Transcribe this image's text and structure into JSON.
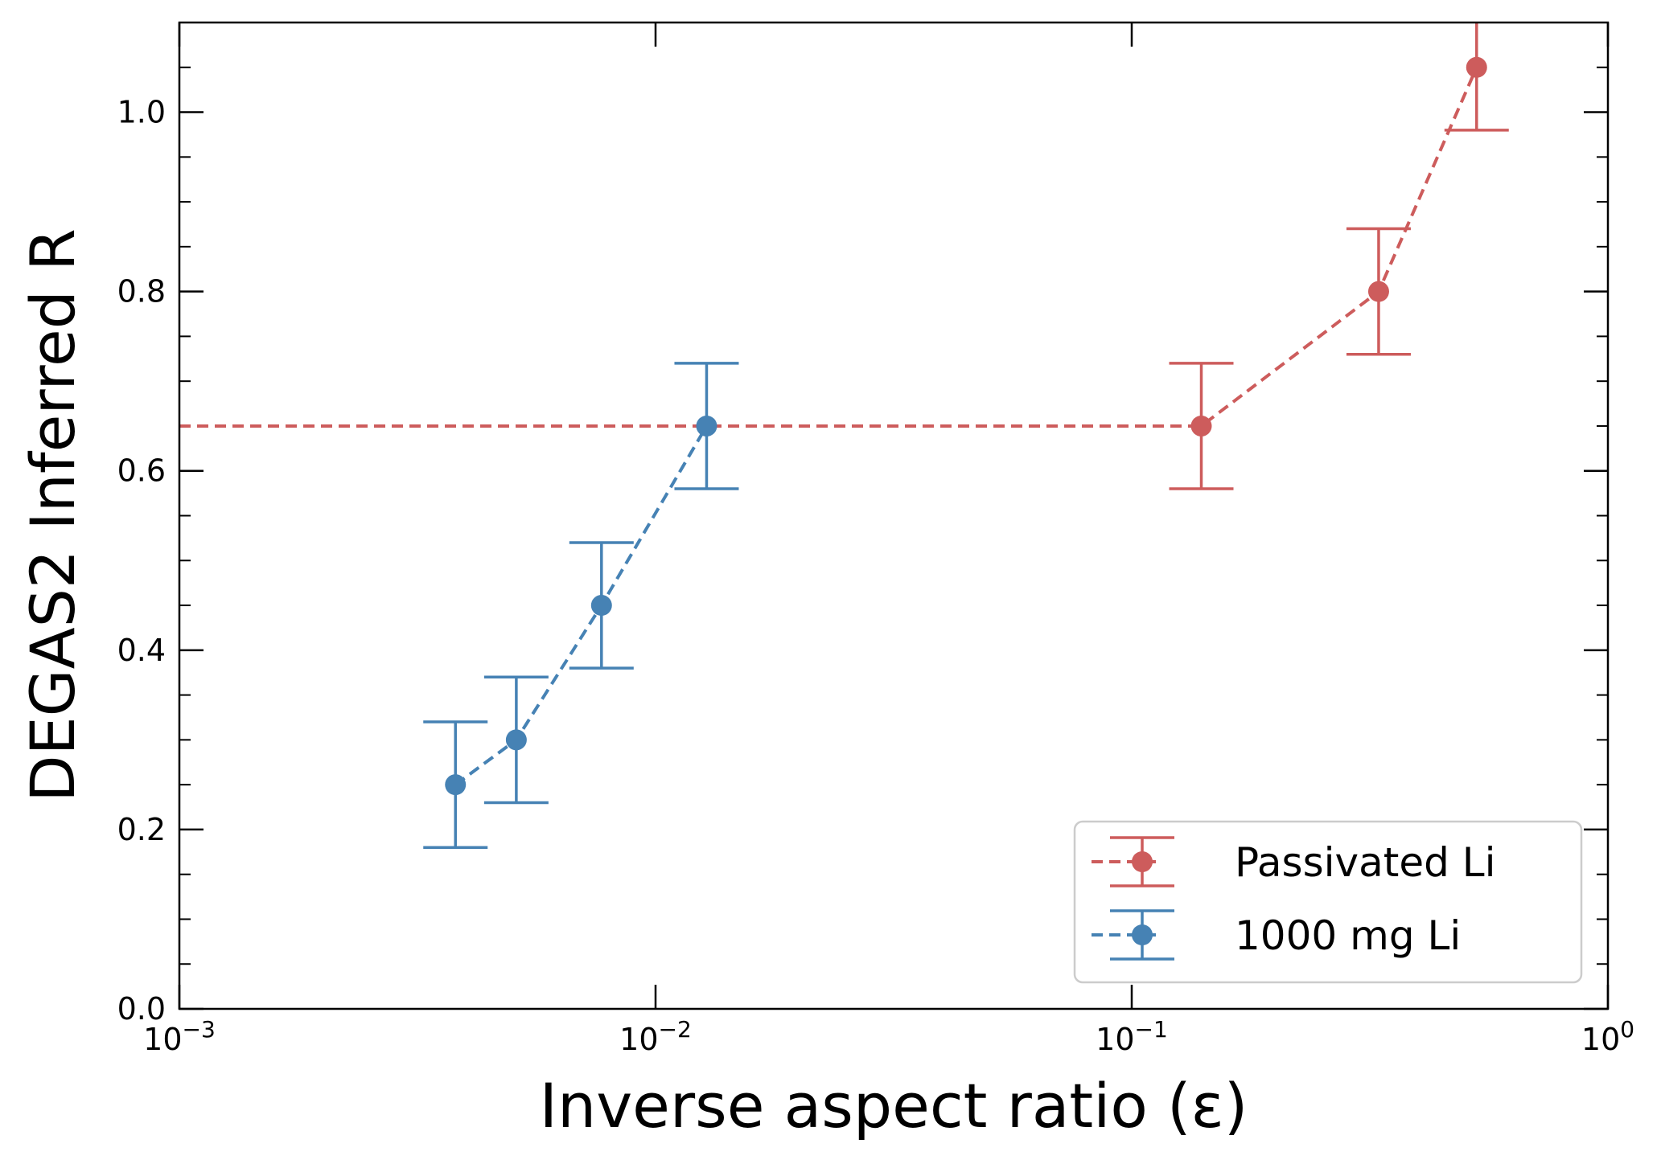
{
  "chart_data": {
    "type": "scatter",
    "xlabel": "Inverse aspect ratio (ε)",
    "ylabel": "DEGAS2 Inferred R",
    "xscale": "log",
    "xlim": [
      0.001,
      1
    ],
    "ylim": [
      0,
      1.1
    ],
    "grid": false,
    "legend_position": "lower-right",
    "x_ticks": [
      {
        "value": 0.001,
        "base": "10",
        "exp": "−3"
      },
      {
        "value": 0.01,
        "base": "10",
        "exp": "−2"
      },
      {
        "value": 0.1,
        "base": "10",
        "exp": "−1"
      },
      {
        "value": 1,
        "base": "10",
        "exp": "0"
      }
    ],
    "y_ticks": [
      {
        "value": 0.0,
        "label": "0.0"
      },
      {
        "value": 0.2,
        "label": "0.2"
      },
      {
        "value": 0.4,
        "label": "0.4"
      },
      {
        "value": 0.6,
        "label": "0.6"
      },
      {
        "value": 0.8,
        "label": "0.8"
      },
      {
        "value": 1.0,
        "label": "1.0"
      }
    ],
    "series": [
      {
        "name": "Passivated Li",
        "color": "#cd5c5c",
        "line_style": "dashed",
        "points": [
          {
            "x": 0.001,
            "y": 0.65,
            "err": null
          },
          {
            "x": 0.14,
            "y": 0.65,
            "err": 0.07
          },
          {
            "x": 0.33,
            "y": 0.8,
            "err": 0.07
          },
          {
            "x": 0.53,
            "y": 1.05,
            "err": 0.07
          }
        ]
      },
      {
        "name": "1000 mg Li",
        "color": "#4682b4",
        "line_style": "dashed",
        "points": [
          {
            "x": 0.0038,
            "y": 0.25,
            "err": 0.07
          },
          {
            "x": 0.0051,
            "y": 0.3,
            "err": 0.07
          },
          {
            "x": 0.0077,
            "y": 0.45,
            "err": 0.07
          },
          {
            "x": 0.0128,
            "y": 0.65,
            "err": 0.07
          }
        ]
      }
    ]
  }
}
